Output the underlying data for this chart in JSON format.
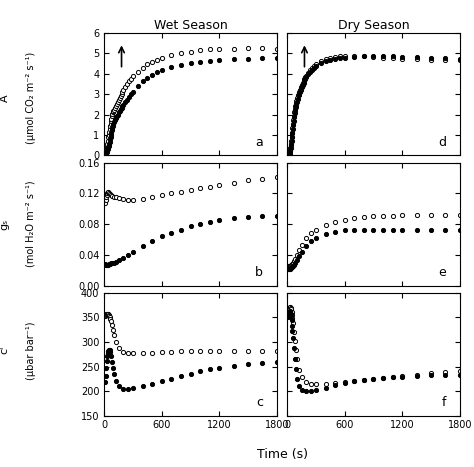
{
  "title_left": "Wet Season",
  "title_right": "Dry Season",
  "xlabel": "Time (s)",
  "ylabel_a_top": "A",
  "ylabel_a_bot": "(μmol CO₂ m⁻² s⁻¹)",
  "ylabel_b_top": "gₛ",
  "ylabel_b_bot": "(mol H₂O m⁻² s⁻¹)",
  "ylabel_c_top": "cᴵ",
  "ylabel_c_bot": "(μbar bar⁻¹)",
  "panel_labels": [
    "a",
    "b",
    "c",
    "d",
    "e",
    "f"
  ],
  "ylim_a": [
    0,
    6
  ],
  "ylim_b": [
    0.0,
    0.16
  ],
  "ylim_c": [
    150,
    400
  ],
  "xlim": [
    0,
    1800
  ],
  "yticks_a": [
    0,
    1,
    2,
    3,
    4,
    5,
    6
  ],
  "yticks_b": [
    0.0,
    0.04,
    0.08,
    0.12,
    0.16
  ],
  "yticks_c": [
    150,
    200,
    250,
    300,
    350,
    400
  ],
  "xticks": [
    0,
    600,
    1200,
    1800
  ],
  "wet_open_A": [
    [
      5,
      0.05
    ],
    [
      10,
      0.1
    ],
    [
      15,
      0.18
    ],
    [
      20,
      0.28
    ],
    [
      25,
      0.42
    ],
    [
      30,
      0.58
    ],
    [
      35,
      0.72
    ],
    [
      40,
      0.88
    ],
    [
      45,
      1.02
    ],
    [
      50,
      1.15
    ],
    [
      55,
      1.28
    ],
    [
      60,
      1.42
    ],
    [
      65,
      1.55
    ],
    [
      70,
      1.68
    ],
    [
      75,
      1.8
    ],
    [
      80,
      1.92
    ],
    [
      85,
      2.02
    ],
    [
      90,
      2.1
    ],
    [
      95,
      2.18
    ],
    [
      100,
      2.22
    ],
    [
      110,
      2.32
    ],
    [
      120,
      2.42
    ],
    [
      130,
      2.52
    ],
    [
      140,
      2.62
    ],
    [
      150,
      2.72
    ],
    [
      160,
      2.82
    ],
    [
      170,
      2.92
    ],
    [
      180,
      3.02
    ],
    [
      190,
      3.1
    ],
    [
      200,
      3.18
    ],
    [
      220,
      3.35
    ],
    [
      240,
      3.5
    ],
    [
      260,
      3.62
    ],
    [
      280,
      3.75
    ],
    [
      300,
      3.88
    ],
    [
      350,
      4.1
    ],
    [
      400,
      4.28
    ],
    [
      450,
      4.45
    ],
    [
      500,
      4.58
    ],
    [
      550,
      4.68
    ],
    [
      600,
      4.78
    ],
    [
      700,
      4.92
    ],
    [
      800,
      5.0
    ],
    [
      900,
      5.08
    ],
    [
      1000,
      5.13
    ],
    [
      1100,
      5.18
    ],
    [
      1200,
      5.2
    ],
    [
      1350,
      5.22
    ],
    [
      1500,
      5.25
    ],
    [
      1650,
      5.25
    ],
    [
      1800,
      5.22
    ]
  ],
  "wet_filled_A": [
    [
      5,
      0.0
    ],
    [
      10,
      0.02
    ],
    [
      15,
      0.06
    ],
    [
      20,
      0.12
    ],
    [
      25,
      0.18
    ],
    [
      30,
      0.25
    ],
    [
      35,
      0.32
    ],
    [
      40,
      0.4
    ],
    [
      45,
      0.48
    ],
    [
      50,
      0.58
    ],
    [
      55,
      0.68
    ],
    [
      60,
      0.78
    ],
    [
      65,
      0.9
    ],
    [
      70,
      1.02
    ],
    [
      75,
      1.12
    ],
    [
      80,
      1.22
    ],
    [
      85,
      1.32
    ],
    [
      90,
      1.42
    ],
    [
      95,
      1.52
    ],
    [
      100,
      1.62
    ],
    [
      110,
      1.72
    ],
    [
      120,
      1.82
    ],
    [
      130,
      1.92
    ],
    [
      140,
      2.0
    ],
    [
      150,
      2.1
    ],
    [
      160,
      2.18
    ],
    [
      170,
      2.25
    ],
    [
      180,
      2.32
    ],
    [
      190,
      2.4
    ],
    [
      200,
      2.48
    ],
    [
      220,
      2.6
    ],
    [
      240,
      2.72
    ],
    [
      260,
      2.85
    ],
    [
      280,
      3.0
    ],
    [
      300,
      3.12
    ],
    [
      350,
      3.4
    ],
    [
      400,
      3.62
    ],
    [
      450,
      3.8
    ],
    [
      500,
      3.95
    ],
    [
      550,
      4.08
    ],
    [
      600,
      4.18
    ],
    [
      700,
      4.32
    ],
    [
      800,
      4.42
    ],
    [
      900,
      4.5
    ],
    [
      1000,
      4.55
    ],
    [
      1100,
      4.6
    ],
    [
      1200,
      4.65
    ],
    [
      1350,
      4.7
    ],
    [
      1500,
      4.72
    ],
    [
      1650,
      4.75
    ],
    [
      1800,
      4.75
    ]
  ],
  "dry_open_A": [
    [
      5,
      -0.12
    ],
    [
      10,
      -0.08
    ],
    [
      15,
      -0.02
    ],
    [
      20,
      0.08
    ],
    [
      25,
      0.22
    ],
    [
      30,
      0.38
    ],
    [
      35,
      0.55
    ],
    [
      40,
      0.72
    ],
    [
      45,
      0.92
    ],
    [
      50,
      1.12
    ],
    [
      55,
      1.35
    ],
    [
      60,
      1.55
    ],
    [
      65,
      1.75
    ],
    [
      70,
      1.95
    ],
    [
      75,
      2.12
    ],
    [
      80,
      2.28
    ],
    [
      85,
      2.42
    ],
    [
      90,
      2.55
    ],
    [
      95,
      2.68
    ],
    [
      100,
      2.8
    ],
    [
      110,
      2.95
    ],
    [
      120,
      3.1
    ],
    [
      130,
      3.22
    ],
    [
      140,
      3.35
    ],
    [
      150,
      3.45
    ],
    [
      160,
      3.55
    ],
    [
      170,
      3.65
    ],
    [
      180,
      3.75
    ],
    [
      190,
      3.83
    ],
    [
      200,
      3.9
    ],
    [
      220,
      4.05
    ],
    [
      240,
      4.18
    ],
    [
      260,
      4.28
    ],
    [
      280,
      4.38
    ],
    [
      300,
      4.45
    ],
    [
      350,
      4.6
    ],
    [
      400,
      4.7
    ],
    [
      450,
      4.78
    ],
    [
      500,
      4.82
    ],
    [
      550,
      4.85
    ],
    [
      600,
      4.88
    ],
    [
      700,
      4.88
    ],
    [
      800,
      4.85
    ],
    [
      900,
      4.82
    ],
    [
      1000,
      4.78
    ],
    [
      1100,
      4.75
    ],
    [
      1200,
      4.72
    ],
    [
      1350,
      4.7
    ],
    [
      1500,
      4.68
    ],
    [
      1650,
      4.65
    ],
    [
      1800,
      4.65
    ]
  ],
  "dry_filled_A": [
    [
      5,
      -0.15
    ],
    [
      10,
      -0.12
    ],
    [
      15,
      -0.08
    ],
    [
      20,
      -0.02
    ],
    [
      25,
      0.08
    ],
    [
      30,
      0.2
    ],
    [
      35,
      0.35
    ],
    [
      40,
      0.52
    ],
    [
      45,
      0.7
    ],
    [
      50,
      0.9
    ],
    [
      55,
      1.1
    ],
    [
      60,
      1.3
    ],
    [
      65,
      1.5
    ],
    [
      70,
      1.7
    ],
    [
      75,
      1.88
    ],
    [
      80,
      2.05
    ],
    [
      85,
      2.2
    ],
    [
      90,
      2.35
    ],
    [
      95,
      2.48
    ],
    [
      100,
      2.6
    ],
    [
      110,
      2.78
    ],
    [
      120,
      2.95
    ],
    [
      130,
      3.1
    ],
    [
      140,
      3.22
    ],
    [
      150,
      3.35
    ],
    [
      160,
      3.45
    ],
    [
      170,
      3.55
    ],
    [
      180,
      3.65
    ],
    [
      190,
      3.75
    ],
    [
      200,
      3.83
    ],
    [
      220,
      3.98
    ],
    [
      240,
      4.1
    ],
    [
      260,
      4.2
    ],
    [
      280,
      4.28
    ],
    [
      300,
      4.35
    ],
    [
      350,
      4.5
    ],
    [
      400,
      4.6
    ],
    [
      450,
      4.68
    ],
    [
      500,
      4.72
    ],
    [
      550,
      4.75
    ],
    [
      600,
      4.78
    ],
    [
      700,
      4.82
    ],
    [
      800,
      4.85
    ],
    [
      900,
      4.85
    ],
    [
      1000,
      4.85
    ],
    [
      1100,
      4.85
    ],
    [
      1200,
      4.82
    ],
    [
      1350,
      4.8
    ],
    [
      1500,
      4.78
    ],
    [
      1650,
      4.75
    ],
    [
      1800,
      4.72
    ]
  ],
  "wet_open_gs": [
    [
      10,
      0.108
    ],
    [
      15,
      0.112
    ],
    [
      20,
      0.115
    ],
    [
      25,
      0.118
    ],
    [
      30,
      0.12
    ],
    [
      35,
      0.122
    ],
    [
      40,
      0.122
    ],
    [
      50,
      0.12
    ],
    [
      60,
      0.119
    ],
    [
      70,
      0.118
    ],
    [
      80,
      0.117
    ],
    [
      100,
      0.116
    ],
    [
      120,
      0.115
    ],
    [
      150,
      0.114
    ],
    [
      200,
      0.113
    ],
    [
      250,
      0.112
    ],
    [
      300,
      0.112
    ],
    [
      400,
      0.113
    ],
    [
      500,
      0.115
    ],
    [
      600,
      0.118
    ],
    [
      700,
      0.12
    ],
    [
      800,
      0.122
    ],
    [
      900,
      0.125
    ],
    [
      1000,
      0.127
    ],
    [
      1100,
      0.129
    ],
    [
      1200,
      0.131
    ],
    [
      1350,
      0.134
    ],
    [
      1500,
      0.137
    ],
    [
      1650,
      0.139
    ],
    [
      1800,
      0.141
    ]
  ],
  "wet_filled_gs": [
    [
      10,
      0.028
    ],
    [
      15,
      0.027
    ],
    [
      20,
      0.027
    ],
    [
      25,
      0.027
    ],
    [
      30,
      0.027
    ],
    [
      40,
      0.027
    ],
    [
      50,
      0.028
    ],
    [
      60,
      0.028
    ],
    [
      70,
      0.029
    ],
    [
      80,
      0.029
    ],
    [
      100,
      0.03
    ],
    [
      120,
      0.031
    ],
    [
      150,
      0.033
    ],
    [
      200,
      0.036
    ],
    [
      250,
      0.04
    ],
    [
      300,
      0.044
    ],
    [
      400,
      0.051
    ],
    [
      500,
      0.058
    ],
    [
      600,
      0.064
    ],
    [
      700,
      0.069
    ],
    [
      800,
      0.073
    ],
    [
      900,
      0.077
    ],
    [
      1000,
      0.08
    ],
    [
      1100,
      0.083
    ],
    [
      1200,
      0.086
    ],
    [
      1350,
      0.088
    ],
    [
      1500,
      0.089
    ],
    [
      1650,
      0.09
    ],
    [
      1800,
      0.09
    ]
  ],
  "dry_open_gs": [
    [
      10,
      0.025
    ],
    [
      15,
      0.025
    ],
    [
      20,
      0.025
    ],
    [
      25,
      0.026
    ],
    [
      30,
      0.026
    ],
    [
      40,
      0.027
    ],
    [
      50,
      0.028
    ],
    [
      60,
      0.03
    ],
    [
      70,
      0.032
    ],
    [
      80,
      0.035
    ],
    [
      100,
      0.04
    ],
    [
      120,
      0.046
    ],
    [
      150,
      0.053
    ],
    [
      200,
      0.062
    ],
    [
      250,
      0.068
    ],
    [
      300,
      0.073
    ],
    [
      400,
      0.079
    ],
    [
      500,
      0.083
    ],
    [
      600,
      0.086
    ],
    [
      700,
      0.088
    ],
    [
      800,
      0.089
    ],
    [
      900,
      0.09
    ],
    [
      1000,
      0.091
    ],
    [
      1100,
      0.091
    ],
    [
      1200,
      0.092
    ],
    [
      1350,
      0.092
    ],
    [
      1500,
      0.092
    ],
    [
      1650,
      0.092
    ],
    [
      1800,
      0.092
    ]
  ],
  "dry_filled_gs": [
    [
      10,
      0.022
    ],
    [
      15,
      0.022
    ],
    [
      20,
      0.022
    ],
    [
      25,
      0.022
    ],
    [
      30,
      0.022
    ],
    [
      40,
      0.023
    ],
    [
      50,
      0.024
    ],
    [
      60,
      0.025
    ],
    [
      70,
      0.027
    ],
    [
      80,
      0.029
    ],
    [
      100,
      0.033
    ],
    [
      120,
      0.038
    ],
    [
      150,
      0.044
    ],
    [
      200,
      0.052
    ],
    [
      250,
      0.058
    ],
    [
      300,
      0.062
    ],
    [
      400,
      0.067
    ],
    [
      500,
      0.07
    ],
    [
      600,
      0.072
    ],
    [
      700,
      0.073
    ],
    [
      800,
      0.073
    ],
    [
      900,
      0.073
    ],
    [
      1000,
      0.073
    ],
    [
      1100,
      0.073
    ],
    [
      1200,
      0.073
    ],
    [
      1350,
      0.073
    ],
    [
      1500,
      0.073
    ],
    [
      1650,
      0.073
    ],
    [
      1800,
      0.073
    ]
  ],
  "wet_open_ci": [
    [
      10,
      352
    ],
    [
      15,
      355
    ],
    [
      20,
      357
    ],
    [
      25,
      358
    ],
    [
      30,
      358
    ],
    [
      35,
      357
    ],
    [
      40,
      356
    ],
    [
      45,
      354
    ],
    [
      50,
      352
    ],
    [
      55,
      350
    ],
    [
      60,
      347
    ],
    [
      70,
      342
    ],
    [
      80,
      335
    ],
    [
      90,
      325
    ],
    [
      100,
      315
    ],
    [
      120,
      300
    ],
    [
      150,
      288
    ],
    [
      200,
      280
    ],
    [
      250,
      278
    ],
    [
      300,
      277
    ],
    [
      400,
      277
    ],
    [
      500,
      278
    ],
    [
      600,
      279
    ],
    [
      700,
      280
    ],
    [
      800,
      281
    ],
    [
      900,
      281
    ],
    [
      1000,
      281
    ],
    [
      1100,
      281
    ],
    [
      1200,
      281
    ],
    [
      1350,
      281
    ],
    [
      1500,
      281
    ],
    [
      1650,
      281
    ],
    [
      1800,
      281
    ]
  ],
  "wet_filled_ci": [
    [
      10,
      218
    ],
    [
      15,
      230
    ],
    [
      20,
      248
    ],
    [
      25,
      262
    ],
    [
      30,
      272
    ],
    [
      35,
      278
    ],
    [
      40,
      282
    ],
    [
      45,
      284
    ],
    [
      50,
      284
    ],
    [
      55,
      283
    ],
    [
      60,
      280
    ],
    [
      70,
      272
    ],
    [
      80,
      260
    ],
    [
      90,
      247
    ],
    [
      100,
      235
    ],
    [
      120,
      220
    ],
    [
      150,
      210
    ],
    [
      200,
      205
    ],
    [
      250,
      205
    ],
    [
      300,
      207
    ],
    [
      400,
      210
    ],
    [
      500,
      215
    ],
    [
      600,
      220
    ],
    [
      700,
      225
    ],
    [
      800,
      230
    ],
    [
      900,
      235
    ],
    [
      1000,
      240
    ],
    [
      1100,
      244
    ],
    [
      1200,
      248
    ],
    [
      1350,
      252
    ],
    [
      1500,
      255
    ],
    [
      1650,
      258
    ],
    [
      1800,
      260
    ]
  ],
  "dry_open_ci": [
    [
      10,
      358
    ],
    [
      15,
      365
    ],
    [
      20,
      370
    ],
    [
      25,
      372
    ],
    [
      30,
      372
    ],
    [
      35,
      370
    ],
    [
      40,
      367
    ],
    [
      45,
      362
    ],
    [
      50,
      355
    ],
    [
      55,
      348
    ],
    [
      60,
      338
    ],
    [
      70,
      320
    ],
    [
      80,
      302
    ],
    [
      90,
      283
    ],
    [
      100,
      265
    ],
    [
      120,
      242
    ],
    [
      150,
      228
    ],
    [
      200,
      218
    ],
    [
      250,
      215
    ],
    [
      300,
      214
    ],
    [
      400,
      215
    ],
    [
      500,
      217
    ],
    [
      600,
      219
    ],
    [
      700,
      221
    ],
    [
      800,
      223
    ],
    [
      900,
      225
    ],
    [
      1000,
      227
    ],
    [
      1100,
      229
    ],
    [
      1200,
      231
    ],
    [
      1350,
      233
    ],
    [
      1500,
      236
    ],
    [
      1650,
      238
    ],
    [
      1800,
      240
    ]
  ],
  "dry_filled_ci": [
    [
      10,
      350
    ],
    [
      15,
      358
    ],
    [
      20,
      362
    ],
    [
      25,
      364
    ],
    [
      30,
      362
    ],
    [
      35,
      358
    ],
    [
      40,
      352
    ],
    [
      45,
      344
    ],
    [
      50,
      333
    ],
    [
      55,
      322
    ],
    [
      60,
      308
    ],
    [
      70,
      288
    ],
    [
      80,
      265
    ],
    [
      90,
      244
    ],
    [
      100,
      225
    ],
    [
      120,
      210
    ],
    [
      150,
      202
    ],
    [
      200,
      200
    ],
    [
      250,
      200
    ],
    [
      300,
      202
    ],
    [
      400,
      207
    ],
    [
      500,
      212
    ],
    [
      600,
      216
    ],
    [
      700,
      220
    ],
    [
      800,
      223
    ],
    [
      900,
      225
    ],
    [
      1000,
      227
    ],
    [
      1100,
      228
    ],
    [
      1200,
      229
    ],
    [
      1350,
      231
    ],
    [
      1500,
      232
    ],
    [
      1650,
      233
    ],
    [
      1800,
      233
    ]
  ]
}
